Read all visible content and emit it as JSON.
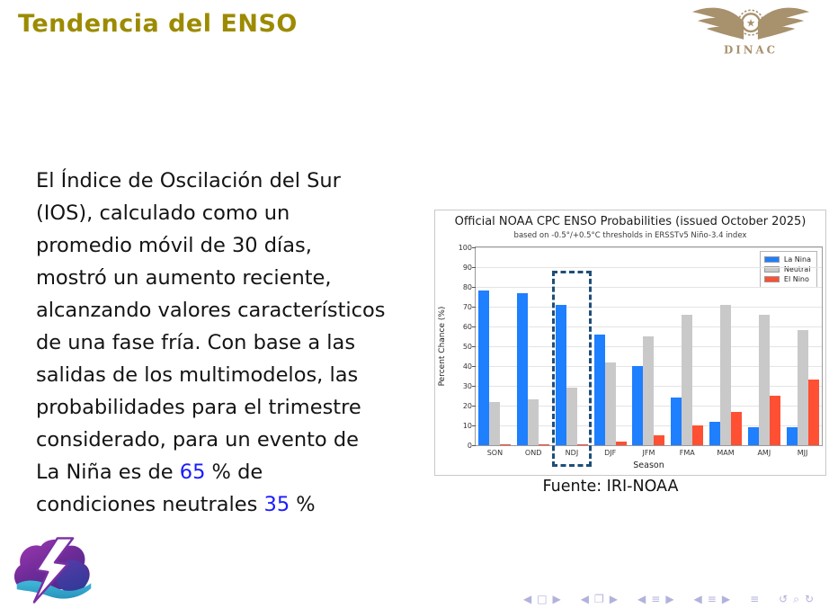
{
  "slide": {
    "title": "Tendencia del ENSO",
    "accent_color": "#9c8b00"
  },
  "logos": {
    "dinac_label": "DINAC",
    "dinac_color": "#a8916d"
  },
  "body": {
    "highlight_color": "#1a1aff",
    "lines": [
      [
        {
          "t": "El Índice de Oscilación del Sur"
        }
      ],
      [
        {
          "t": "(IOS), calculado como un"
        }
      ],
      [
        {
          "t": "promedio móvil de 30 días,"
        }
      ],
      [
        {
          "t": "mostró un aumento reciente,"
        }
      ],
      [
        {
          "t": "alcanzando valores característicos"
        }
      ],
      [
        {
          "t": "de una fase fría. Con base a las"
        }
      ],
      [
        {
          "t": "salidas de los multimodelos, las"
        }
      ],
      [
        {
          "t": "probabilidades para el trimestre"
        }
      ],
      [
        {
          "t": "considerado, para un evento de"
        }
      ],
      [
        {
          "t": "La Niña es de "
        },
        {
          "t": "65",
          "blue": true
        },
        {
          "t": " % de"
        }
      ],
      [
        {
          "t": "condiciones neutrales "
        },
        {
          "t": "35",
          "blue": true
        },
        {
          "t": " %"
        }
      ]
    ]
  },
  "figure": {
    "caption": "Fuente: IRI-NOAA"
  },
  "chart_data": {
    "type": "bar",
    "title": "Official NOAA CPC ENSO Probabilities (issued October 2025)",
    "subtitle": "based on -0.5°/+0.5°C thresholds in ERSSTv5 Niño-3.4 index",
    "xlabel": "Season",
    "ylabel": "Percent Chance (%)",
    "ylim": [
      0,
      100
    ],
    "yticks": [
      0,
      10,
      20,
      30,
      40,
      50,
      60,
      70,
      80,
      90,
      100
    ],
    "grid": true,
    "legend_position": "top-right",
    "categories": [
      "SON",
      "OND",
      "NDJ",
      "DJF",
      "JFM",
      "FMA",
      "MAM",
      "AMJ",
      "MJJ"
    ],
    "series": [
      {
        "name": "La Nina",
        "color": "#1e7fff",
        "values": [
          78,
          77,
          71,
          56,
          40,
          24,
          12,
          9,
          9
        ]
      },
      {
        "name": "Neutral",
        "color": "#c9c9c9",
        "values": [
          22,
          23,
          29,
          42,
          55,
          66,
          71,
          66,
          58
        ]
      },
      {
        "name": "El Nino",
        "color": "#ff5033",
        "values": [
          0,
          0,
          0,
          2,
          5,
          10,
          17,
          25,
          33
        ]
      }
    ],
    "highlight": {
      "category": "NDJ",
      "style": "dashed-box",
      "color": "#1f4e79"
    }
  },
  "nav": {
    "color": "#b2b2dc",
    "groups": [
      {
        "name": "slide-nav",
        "symbols": [
          "◀",
          "□",
          "▶"
        ]
      },
      {
        "name": "frame-nav",
        "symbols": [
          "◀",
          "❐",
          "▶"
        ]
      },
      {
        "name": "subsection-nav",
        "symbols": [
          "◀",
          "≡",
          "▶"
        ]
      },
      {
        "name": "section-nav",
        "symbols": [
          "◀",
          "≡",
          "▶"
        ]
      },
      {
        "name": "presentation-nav",
        "symbols": [
          "≡"
        ]
      },
      {
        "name": "history-nav",
        "symbols": [
          "↺",
          "⌕",
          "↻"
        ]
      }
    ]
  }
}
